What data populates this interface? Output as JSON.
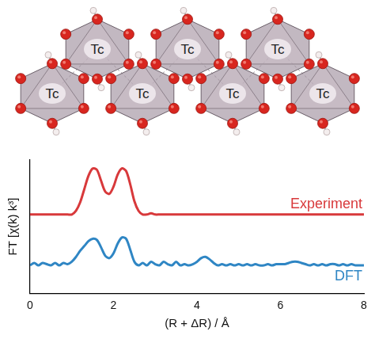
{
  "chart_data": {
    "type": "line",
    "x_label": "(R + ΔR) / Å",
    "y_label": "FT [χ(k) k³]",
    "x": [
      0,
      0.1,
      0.2,
      0.3,
      0.4,
      0.5,
      0.6,
      0.7,
      0.8,
      0.9,
      1,
      1.1,
      1.2,
      1.3,
      1.4,
      1.5,
      1.6,
      1.7,
      1.8,
      1.9,
      2,
      2.1,
      2.2,
      2.3,
      2.4,
      2.5,
      2.6,
      2.7,
      2.8,
      2.9,
      3,
      3.1,
      3.2,
      3.3,
      3.4,
      3.5,
      3.6,
      3.7,
      3.8,
      3.9,
      4,
      4.1,
      4.2,
      4.3,
      4.4,
      4.5,
      4.6,
      4.7,
      4.8,
      4.9,
      5,
      5.1,
      5.2,
      5.3,
      5.4,
      5.5,
      5.6,
      5.7,
      5.8,
      5.9,
      6,
      6.1,
      6.2,
      6.3,
      6.4,
      6.5,
      6.6,
      6.7,
      6.8,
      6.9,
      7,
      7.1,
      7.2,
      7.3,
      7.4,
      7.5,
      7.6,
      7.7,
      7.8,
      7.9,
      8
    ],
    "series": [
      {
        "name": "Experiment",
        "color": "#d8393b",
        "values": [
          6.5,
          6.5,
          6.5,
          6.5,
          6.5,
          6.5,
          6.5,
          6.5,
          6.5,
          6.5,
          6.5,
          6.8,
          7.5,
          8.6,
          9.7,
          10.3,
          10.2,
          9.3,
          8.4,
          8.2,
          8.8,
          9.8,
          10.3,
          10.1,
          9.0,
          7.6,
          6.8,
          6.5,
          6.5,
          6.6,
          6.5,
          6.5,
          6.5,
          6.5,
          6.5,
          6.5,
          6.5,
          6.5,
          6.5,
          6.5,
          6.5,
          6.5,
          6.5,
          6.5,
          6.5,
          6.5,
          6.5,
          6.5,
          6.5,
          6.5,
          6.5,
          6.5,
          6.5,
          6.5,
          6.5,
          6.5,
          6.5,
          6.5,
          6.5,
          6.5,
          6.5,
          6.5,
          6.5,
          6.5,
          6.5,
          6.5,
          6.5,
          6.5,
          6.5,
          6.5,
          6.5,
          6.5,
          6.5,
          6.5,
          6.5,
          6.5,
          6.5,
          6.5,
          6.5,
          6.5,
          6.5
        ]
      },
      {
        "name": "DFT",
        "color": "#2f86c4",
        "values": [
          2.3,
          2.5,
          2.3,
          2.5,
          2.4,
          2.3,
          2.5,
          2.3,
          2.5,
          2.4,
          2.6,
          3.0,
          3.5,
          3.9,
          4.3,
          4.5,
          4.4,
          3.8,
          3.1,
          2.9,
          3.3,
          4.1,
          4.6,
          4.5,
          3.6,
          2.6,
          2.3,
          2.5,
          2.3,
          2.6,
          2.4,
          2.3,
          2.6,
          2.4,
          2.3,
          2.6,
          2.3,
          2.4,
          2.3,
          2.4,
          2.6,
          2.9,
          3.0,
          2.8,
          2.5,
          2.3,
          2.4,
          2.3,
          2.4,
          2.3,
          2.4,
          2.3,
          2.4,
          2.3,
          2.4,
          2.3,
          2.3,
          2.4,
          2.3,
          2.4,
          2.4,
          2.4,
          2.5,
          2.6,
          2.6,
          2.5,
          2.4,
          2.3,
          2.4,
          2.3,
          2.4,
          2.3,
          2.4,
          2.4,
          2.3,
          2.4,
          2.3,
          2.4,
          2.3,
          2.3,
          2.3
        ]
      }
    ],
    "xlim": [
      0,
      8
    ],
    "xticks": [
      0,
      2,
      4,
      6,
      8
    ],
    "ylim": [
      0,
      11
    ],
    "grid": false,
    "tick_labels": "x"
  },
  "structure": {
    "labels": [
      "Tc",
      "Tc",
      "Tc",
      "Tc",
      "Tc",
      "Tc",
      "Tc"
    ]
  }
}
